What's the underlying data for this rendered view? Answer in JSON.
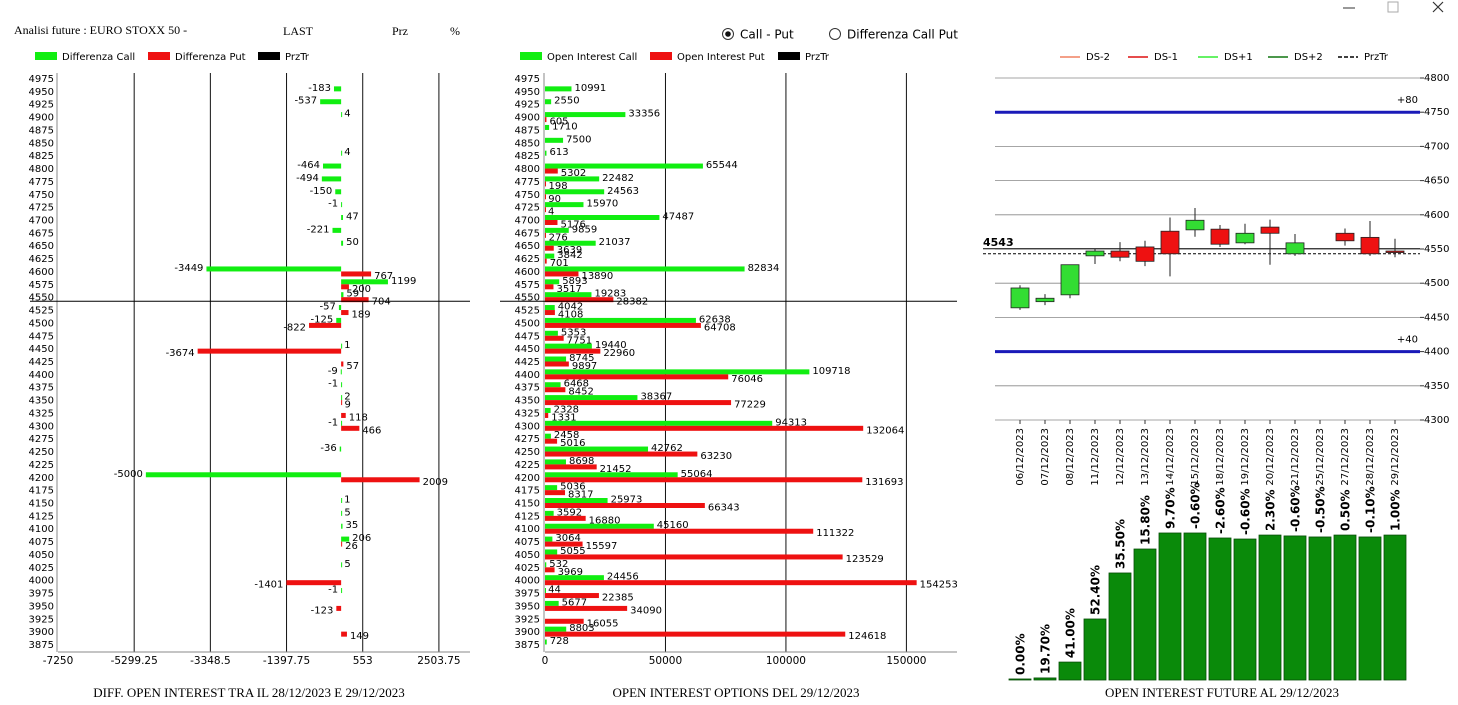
{
  "header": {
    "title": "Analisi future : EURO STOXX 50 -",
    "last": "LAST",
    "prz": "Prz",
    "pct": "%"
  },
  "options": [
    "Call - Put",
    "Differenza Call Put"
  ],
  "selected_option": 0,
  "chart_data": [
    {
      "type": "hbar-diff",
      "title": "DIFF. OPEN INTEREST TRA IL 28/12/2023 E 29/12/2023",
      "categories": [
        4975,
        4950,
        4925,
        4900,
        4875,
        4850,
        4825,
        4800,
        4775,
        4750,
        4725,
        4700,
        4675,
        4650,
        4625,
        4600,
        4575,
        4550,
        4525,
        4500,
        4475,
        4450,
        4425,
        4400,
        4375,
        4350,
        4325,
        4300,
        4275,
        4250,
        4225,
        4200,
        4175,
        4150,
        4125,
        4100,
        4075,
        4050,
        4025,
        4000,
        3975,
        3950,
        3925,
        3900,
        3875
      ],
      "series": [
        {
          "name": "Differenza Call",
          "color": "#11ee11",
          "values": [
            null,
            -183,
            -537,
            4,
            null,
            null,
            4,
            -464,
            -494,
            -150,
            -1,
            47,
            -221,
            50,
            null,
            -3449,
            1199,
            59,
            -57,
            -125,
            null,
            1,
            null,
            -9,
            -1,
            2,
            null,
            -1,
            null,
            -36,
            null,
            -5000,
            null,
            1,
            5,
            35,
            206,
            null,
            5,
            null,
            -1,
            null,
            null,
            null,
            null
          ]
        },
        {
          "name": "Differenza Put",
          "color": "#ee1111",
          "values": [
            null,
            null,
            null,
            null,
            null,
            null,
            null,
            null,
            null,
            null,
            null,
            null,
            null,
            null,
            null,
            767,
            200,
            704,
            189,
            -822,
            null,
            -3674,
            57,
            null,
            null,
            9,
            118,
            466,
            null,
            null,
            null,
            2009,
            null,
            null,
            null,
            null,
            26,
            null,
            null,
            -1401,
            null,
            -123,
            null,
            149,
            null
          ]
        }
      ],
      "price_line": {
        "name": "PrzTr",
        "color": "#000000",
        "value": 4543
      },
      "xlim": [
        -7250,
        3300
      ],
      "xticks": [
        -7250,
        -5299.25,
        -3348.5,
        -1397.75,
        553,
        2503.75
      ],
      "grid": true
    },
    {
      "type": "hbar-oi",
      "title": "OPEN INTEREST OPTIONS DEL 29/12/2023",
      "categories": [
        4975,
        4950,
        4925,
        4900,
        4875,
        4850,
        4825,
        4800,
        4775,
        4750,
        4725,
        4700,
        4675,
        4650,
        4625,
        4600,
        4575,
        4550,
        4525,
        4500,
        4475,
        4450,
        4425,
        4400,
        4375,
        4350,
        4325,
        4300,
        4275,
        4250,
        4225,
        4200,
        4175,
        4150,
        4125,
        4100,
        4075,
        4050,
        4025,
        4000,
        3975,
        3950,
        3925,
        3900,
        3875
      ],
      "series": [
        {
          "name": "Open Interest Call",
          "color": "#11ee11",
          "values": [
            null,
            10991,
            2550,
            33356,
            1710,
            7500,
            613,
            65544,
            22482,
            24563,
            15970,
            47487,
            9859,
            21037,
            3842,
            82834,
            5893,
            19283,
            4042,
            62638,
            5353,
            19440,
            8745,
            109718,
            6468,
            38367,
            2328,
            94313,
            2458,
            42762,
            8698,
            55064,
            5036,
            25973,
            3592,
            45160,
            3064,
            5055,
            532,
            24456,
            44,
            5677,
            null,
            8803,
            728
          ]
        },
        {
          "name": "Open Interest Put",
          "color": "#ee1111",
          "values": [
            null,
            null,
            null,
            605,
            null,
            null,
            null,
            5302,
            198,
            90,
            4,
            5176,
            276,
            3639,
            701,
            13890,
            3517,
            28382,
            4108,
            64708,
            7751,
            22960,
            9897,
            76046,
            8452,
            77229,
            1331,
            132064,
            5016,
            63230,
            21452,
            131693,
            8317,
            66343,
            16880,
            111322,
            15597,
            123529,
            3969,
            154253,
            22385,
            34090,
            16055,
            124618,
            null
          ]
        }
      ],
      "price_line": {
        "name": "PrzTr",
        "color": "#000000",
        "value": 4543
      },
      "xlim": [
        0,
        171000
      ],
      "xticks": [
        0,
        50000,
        100000,
        150000
      ],
      "grid": true
    },
    {
      "type": "candlestick",
      "categories": [
        "06/12/2023",
        "07/12/2023",
        "08/12/2023",
        "11/12/2023",
        "12/12/2023",
        "13/12/2023",
        "14/12/2023",
        "15/12/2023",
        "18/12/2023",
        "19/12/2023",
        "20/12/2023",
        "21/12/2023",
        "25/12/2023",
        "27/12/2023",
        "28/12/2023",
        "29/12/2023"
      ],
      "open": [
        4464,
        4473,
        4483,
        4540,
        4547,
        4553,
        4576,
        4578,
        4579,
        4559,
        4582,
        4543,
        null,
        4573,
        4567,
        4547
      ],
      "high": [
        4497,
        4484,
        4527,
        4551,
        4560,
        4562,
        4596,
        4610,
        4585,
        4587,
        4593,
        4572,
        null,
        4580,
        4591,
        4565
      ],
      "low": [
        4461,
        4468,
        4478,
        4528,
        4532,
        4525,
        4510,
        4568,
        4553,
        4557,
        4527,
        4540,
        null,
        4555,
        4540,
        4538
      ],
      "close": [
        4493,
        4478,
        4527,
        4547,
        4538,
        4532,
        4543,
        4592,
        4557,
        4573,
        4573,
        4559,
        null,
        4562,
        4543,
        4546
      ],
      "color_up": "#33dd33",
      "color_down": "#ee1111",
      "legend": [
        {
          "name": "DS-2",
          "color": "#f08060",
          "dash": false
        },
        {
          "name": "DS-1",
          "color": "#dd1111",
          "dash": false
        },
        {
          "name": "DS+1",
          "color": "#33ee33",
          "dash": false
        },
        {
          "name": "DS+2",
          "color": "#117711",
          "dash": false
        },
        {
          "name": "PrzTr",
          "color": "#000000",
          "dash": true
        }
      ],
      "levels": [
        {
          "value": 4750,
          "label": "+80",
          "color": "#1a1ab8"
        },
        {
          "value": 4400,
          "label": "+40",
          "color": "#1a1ab8"
        }
      ],
      "price": 4543,
      "ylim": [
        4300,
        4800
      ],
      "yticks": [
        4300,
        4350,
        4400,
        4450,
        4500,
        4550,
        4600,
        4650,
        4700,
        4750,
        4800
      ],
      "grid": true
    },
    {
      "type": "bar",
      "title": "OPEN INTEREST FUTURE AL 29/12/2023",
      "values": [
        0.7,
        1.4,
        12.2,
        41.5,
        72.8,
        89.1,
        100,
        100,
        96.6,
        95.9,
        98.6,
        98.0,
        97.3,
        98.6,
        97.3,
        98.6
      ],
      "changes": [
        0,
        19.7,
        41,
        52.4,
        35.5,
        15.8,
        9.7,
        -0.6,
        -2.6,
        -0.6,
        2.3,
        -0.6,
        -0.5,
        0.5,
        -0.1,
        1
      ],
      "change_labels": [
        "0.00%",
        "19.70%",
        "41.00%",
        "52.40%",
        "35.50%",
        "15.80%",
        "9.70%",
        "-0.60%",
        "-2.60%",
        "-0.60%",
        "2.30%",
        "-0.60%",
        "-0.50%",
        "0.50%",
        "-0.10%",
        "1.00%"
      ],
      "color": "#0a8a0a",
      "ylim": [
        0,
        100
      ]
    }
  ]
}
